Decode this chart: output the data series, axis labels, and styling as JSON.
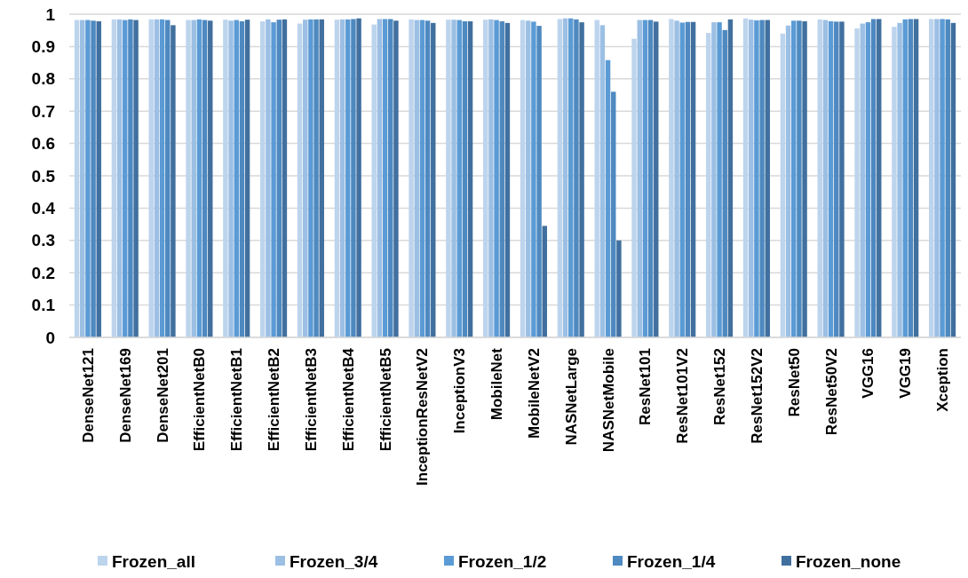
{
  "chart_data": {
    "type": "bar",
    "categories": [
      "DenseNet121",
      "DenseNet169",
      "DenseNet201",
      "EfficientNetB0",
      "EfficientNetB1",
      "EfficientNetB2",
      "EfficientNetB3",
      "EfficientNetB4",
      "EfficientNetB5",
      "InceptionResNetV2",
      "InceptionV3",
      "MobileNet",
      "MobileNetV2",
      "NASNetLarge",
      "NASNetMobile",
      "ResNet101",
      "ResNet101V2",
      "ResNet152",
      "ResNet152V2",
      "ResNet50",
      "ResNet50V2",
      "VGG16",
      "VGG19",
      "Xception"
    ],
    "series": [
      {
        "name": "Frozen_all",
        "color": "#bdd4ed",
        "values": [
          0.982,
          0.984,
          0.984,
          0.982,
          0.983,
          0.978,
          0.971,
          0.983,
          0.968,
          0.984,
          0.983,
          0.983,
          0.982,
          0.985,
          0.982,
          0.924,
          0.985,
          0.942,
          0.987,
          0.94,
          0.984,
          0.956,
          0.961,
          0.985
        ]
      },
      {
        "name": "Frozen_3/4",
        "color": "#9cbfe4",
        "values": [
          0.982,
          0.984,
          0.984,
          0.982,
          0.98,
          0.984,
          0.983,
          0.984,
          0.985,
          0.982,
          0.983,
          0.984,
          0.98,
          0.987,
          0.966,
          0.982,
          0.98,
          0.975,
          0.983,
          0.965,
          0.982,
          0.971,
          0.973,
          0.985
        ]
      },
      {
        "name": "Frozen_1/2",
        "color": "#5b9bd5",
        "values": [
          0.982,
          0.982,
          0.984,
          0.984,
          0.982,
          0.975,
          0.984,
          0.984,
          0.985,
          0.982,
          0.982,
          0.982,
          0.977,
          0.987,
          0.858,
          0.982,
          0.974,
          0.975,
          0.981,
          0.98,
          0.978,
          0.975,
          0.984,
          0.985
        ]
      },
      {
        "name": "Frozen_1/4",
        "color": "#4e89c0",
        "values": [
          0.98,
          0.984,
          0.982,
          0.982,
          0.978,
          0.983,
          0.984,
          0.985,
          0.985,
          0.98,
          0.978,
          0.978,
          0.964,
          0.984,
          0.76,
          0.982,
          0.976,
          0.951,
          0.982,
          0.98,
          0.977,
          0.985,
          0.985,
          0.984
        ]
      },
      {
        "name": "Frozen_none",
        "color": "#41709f",
        "values": [
          0.978,
          0.982,
          0.966,
          0.98,
          0.983,
          0.984,
          0.984,
          0.987,
          0.98,
          0.973,
          0.978,
          0.973,
          0.345,
          0.975,
          0.3,
          0.977,
          0.976,
          0.984,
          0.982,
          0.978,
          0.977,
          0.985,
          0.985,
          0.973
        ]
      }
    ],
    "ylim": [
      0,
      1
    ],
    "yticks": [
      0,
      0.1,
      0.2,
      0.3,
      0.4,
      0.5,
      0.6,
      0.7,
      0.8,
      0.9,
      1
    ],
    "grid": "y",
    "legend": "bottom"
  }
}
